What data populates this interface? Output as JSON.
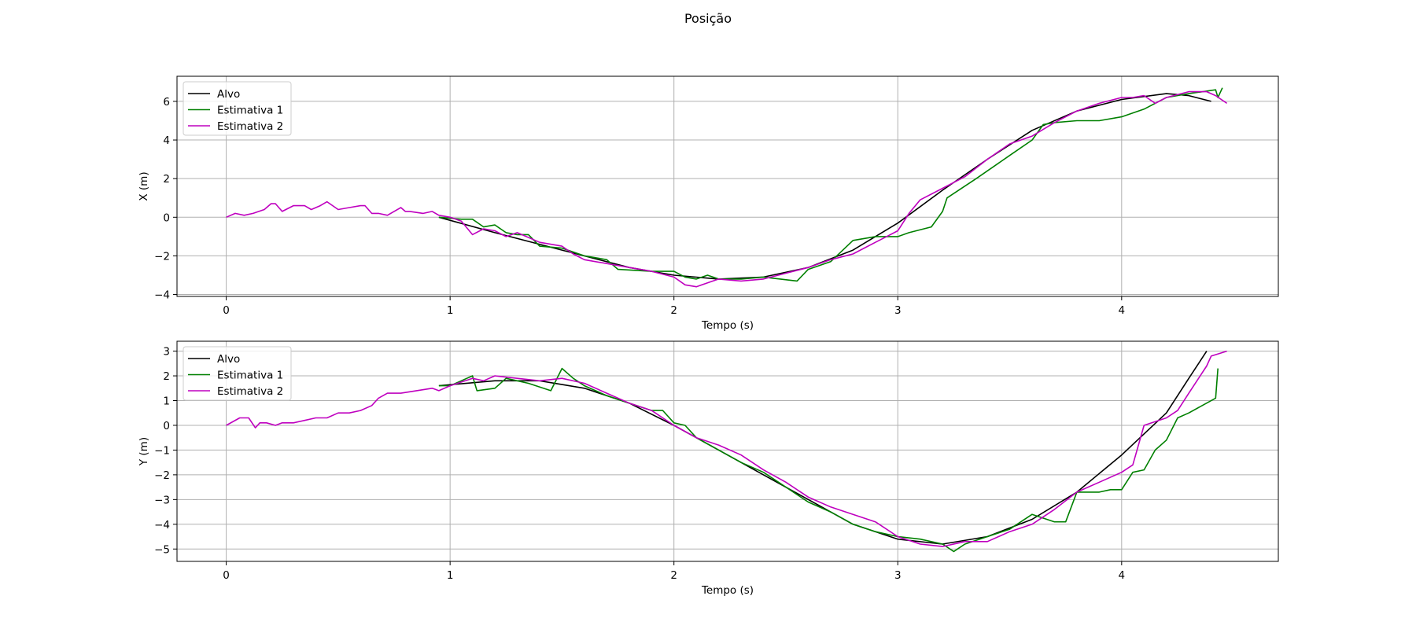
{
  "figure_title": "Posição",
  "series_styles": [
    {
      "name": "Alvo",
      "color": "#000000"
    },
    {
      "name": "Estimativa 1",
      "color": "#008000"
    },
    {
      "name": "Estimativa 2",
      "color": "#bf00bf"
    }
  ],
  "chart_data": [
    {
      "type": "line",
      "xlabel": "Tempo (s)",
      "ylabel": "X (m)",
      "xlim": [
        -0.22,
        4.7
      ],
      "ylim": [
        -4.1,
        7.3
      ],
      "xticks": [
        0,
        1,
        2,
        3,
        4
      ],
      "xtick_labels": [
        "0",
        "1",
        "2",
        "3",
        "4"
      ],
      "yticks": [
        -4,
        -2,
        0,
        2,
        4,
        6
      ],
      "ytick_labels": [
        "−4",
        "−2",
        "0",
        "2",
        "4",
        "6"
      ],
      "grid": true,
      "legend_position": "upper-left",
      "series": [
        {
          "name": "Alvo",
          "x": [
            0.95,
            1.2,
            1.5,
            1.8,
            2.0,
            2.2,
            2.4,
            2.6,
            2.8,
            3.0,
            3.2,
            3.4,
            3.6,
            3.8,
            4.0,
            4.2,
            4.3,
            4.4
          ],
          "y": [
            0.0,
            -0.8,
            -1.7,
            -2.6,
            -3.0,
            -3.2,
            -3.1,
            -2.6,
            -1.7,
            -0.3,
            1.4,
            3.0,
            4.5,
            5.5,
            6.1,
            6.4,
            6.3,
            6.0
          ]
        },
        {
          "name": "Estimativa 1",
          "x": [
            0.95,
            1.05,
            1.1,
            1.15,
            1.2,
            1.25,
            1.3,
            1.35,
            1.4,
            1.5,
            1.6,
            1.7,
            1.75,
            1.9,
            2.0,
            2.05,
            2.1,
            2.15,
            2.2,
            2.3,
            2.4,
            2.55,
            2.6,
            2.7,
            2.8,
            2.9,
            3.0,
            3.05,
            3.15,
            3.2,
            3.22,
            3.35,
            3.5,
            3.6,
            3.65,
            3.7,
            3.8,
            3.9,
            4.0,
            4.1,
            4.2,
            4.3,
            4.42,
            4.43,
            4.45
          ],
          "y": [
            0.0,
            -0.1,
            -0.1,
            -0.5,
            -0.4,
            -0.8,
            -0.9,
            -0.9,
            -1.5,
            -1.6,
            -2.0,
            -2.2,
            -2.7,
            -2.8,
            -2.8,
            -3.1,
            -3.2,
            -3.0,
            -3.2,
            -3.2,
            -3.1,
            -3.3,
            -2.7,
            -2.3,
            -1.2,
            -1.0,
            -1.0,
            -0.8,
            -0.5,
            0.3,
            1.0,
            2.0,
            3.2,
            4.0,
            4.8,
            4.9,
            5.0,
            5.0,
            5.2,
            5.6,
            6.2,
            6.4,
            6.6,
            6.2,
            6.7
          ]
        },
        {
          "name": "Estimativa 2",
          "x": [
            0.0,
            0.04,
            0.08,
            0.12,
            0.17,
            0.2,
            0.22,
            0.25,
            0.3,
            0.35,
            0.38,
            0.42,
            0.45,
            0.5,
            0.55,
            0.6,
            0.62,
            0.65,
            0.68,
            0.72,
            0.78,
            0.8,
            0.82,
            0.88,
            0.92,
            0.95,
            1.0,
            1.05,
            1.1,
            1.15,
            1.2,
            1.25,
            1.3,
            1.4,
            1.5,
            1.55,
            1.6,
            1.7,
            1.8,
            1.9,
            2.0,
            2.05,
            2.1,
            2.15,
            2.2,
            2.3,
            2.4,
            2.5,
            2.6,
            2.7,
            2.8,
            2.9,
            2.95,
            3.0,
            3.05,
            3.1,
            3.2,
            3.3,
            3.4,
            3.5,
            3.6,
            3.7,
            3.8,
            3.9,
            4.0,
            4.05,
            4.1,
            4.15,
            4.2,
            4.3,
            4.38,
            4.42,
            4.47
          ],
          "y": [
            0.0,
            0.2,
            0.1,
            0.2,
            0.4,
            0.7,
            0.7,
            0.3,
            0.6,
            0.6,
            0.4,
            0.6,
            0.8,
            0.4,
            0.5,
            0.6,
            0.6,
            0.2,
            0.2,
            0.1,
            0.5,
            0.3,
            0.3,
            0.2,
            0.3,
            0.1,
            0.0,
            -0.2,
            -0.9,
            -0.6,
            -0.7,
            -1.0,
            -0.8,
            -1.3,
            -1.5,
            -1.9,
            -2.2,
            -2.4,
            -2.6,
            -2.8,
            -3.1,
            -3.5,
            -3.6,
            -3.4,
            -3.2,
            -3.3,
            -3.2,
            -2.9,
            -2.6,
            -2.2,
            -1.9,
            -1.3,
            -1.0,
            -0.7,
            0.2,
            0.9,
            1.5,
            2.1,
            3.0,
            3.8,
            4.2,
            4.9,
            5.5,
            5.9,
            6.2,
            6.2,
            6.3,
            5.9,
            6.2,
            6.5,
            6.5,
            6.3,
            5.9
          ]
        }
      ]
    },
    {
      "type": "line",
      "xlabel": "Tempo (s)",
      "ylabel": "Y (m)",
      "xlim": [
        -0.22,
        4.7
      ],
      "ylim": [
        -5.5,
        3.4
      ],
      "xticks": [
        0,
        1,
        2,
        3,
        4
      ],
      "xtick_labels": [
        "0",
        "1",
        "2",
        "3",
        "4"
      ],
      "yticks": [
        -5,
        -4,
        -3,
        -2,
        -1,
        0,
        1,
        2,
        3
      ],
      "ytick_labels": [
        "−5",
        "−4",
        "−3",
        "−2",
        "−1",
        "0",
        "1",
        "2",
        "3"
      ],
      "grid": true,
      "legend_position": "upper-left",
      "series": [
        {
          "name": "Alvo",
          "x": [
            0.95,
            1.2,
            1.4,
            1.6,
            1.8,
            2.0,
            2.2,
            2.4,
            2.6,
            2.8,
            3.0,
            3.2,
            3.4,
            3.6,
            3.8,
            4.0,
            4.2,
            4.3,
            4.38
          ],
          "y": [
            1.6,
            1.8,
            1.8,
            1.5,
            0.9,
            0.0,
            -1.0,
            -2.0,
            -3.0,
            -4.0,
            -4.6,
            -4.8,
            -4.5,
            -3.8,
            -2.7,
            -1.2,
            0.5,
            1.9,
            3.0
          ]
        },
        {
          "name": "Estimativa 1",
          "x": [
            0.95,
            1.0,
            1.05,
            1.1,
            1.12,
            1.2,
            1.25,
            1.3,
            1.35,
            1.45,
            1.5,
            1.55,
            1.6,
            1.7,
            1.8,
            1.9,
            1.95,
            2.0,
            2.05,
            2.1,
            2.2,
            2.3,
            2.4,
            2.5,
            2.6,
            2.7,
            2.8,
            2.9,
            3.0,
            3.1,
            3.2,
            3.25,
            3.3,
            3.4,
            3.5,
            3.6,
            3.7,
            3.75,
            3.8,
            3.9,
            3.95,
            4.0,
            4.05,
            4.1,
            4.15,
            4.2,
            4.25,
            4.3,
            4.42,
            4.43
          ],
          "y": [
            1.6,
            1.6,
            1.8,
            2.0,
            1.4,
            1.5,
            1.9,
            1.8,
            1.7,
            1.4,
            2.3,
            1.9,
            1.6,
            1.2,
            0.9,
            0.6,
            0.6,
            0.1,
            0.0,
            -0.5,
            -1.0,
            -1.5,
            -1.9,
            -2.5,
            -3.1,
            -3.5,
            -4.0,
            -4.3,
            -4.5,
            -4.6,
            -4.8,
            -5.1,
            -4.8,
            -4.5,
            -4.2,
            -3.6,
            -3.9,
            -3.9,
            -2.7,
            -2.7,
            -2.6,
            -2.6,
            -1.9,
            -1.8,
            -1.0,
            -0.6,
            0.3,
            0.5,
            1.1,
            2.3
          ]
        },
        {
          "name": "Estimativa 2",
          "x": [
            0.0,
            0.06,
            0.1,
            0.13,
            0.15,
            0.18,
            0.22,
            0.25,
            0.3,
            0.35,
            0.4,
            0.45,
            0.5,
            0.55,
            0.6,
            0.65,
            0.68,
            0.72,
            0.78,
            0.85,
            0.92,
            0.95,
            1.0,
            1.1,
            1.15,
            1.2,
            1.3,
            1.4,
            1.5,
            1.6,
            1.7,
            1.8,
            1.9,
            2.0,
            2.1,
            2.2,
            2.3,
            2.4,
            2.5,
            2.6,
            2.7,
            2.8,
            2.9,
            3.0,
            3.1,
            3.2,
            3.3,
            3.4,
            3.5,
            3.6,
            3.7,
            3.8,
            3.9,
            4.0,
            4.05,
            4.1,
            4.2,
            4.25,
            4.3,
            4.38,
            4.4,
            4.47
          ],
          "y": [
            0.0,
            0.3,
            0.3,
            -0.1,
            0.1,
            0.1,
            0.0,
            0.1,
            0.1,
            0.2,
            0.3,
            0.3,
            0.5,
            0.5,
            0.6,
            0.8,
            1.1,
            1.3,
            1.3,
            1.4,
            1.5,
            1.4,
            1.6,
            1.9,
            1.8,
            2.0,
            1.9,
            1.8,
            1.9,
            1.7,
            1.3,
            0.9,
            0.6,
            0.0,
            -0.5,
            -0.8,
            -1.2,
            -1.8,
            -2.3,
            -2.9,
            -3.3,
            -3.6,
            -3.9,
            -4.5,
            -4.8,
            -4.9,
            -4.7,
            -4.7,
            -4.3,
            -4.0,
            -3.4,
            -2.7,
            -2.3,
            -1.9,
            -1.6,
            0.0,
            0.3,
            0.6,
            1.3,
            2.4,
            2.8,
            3.0
          ]
        }
      ]
    }
  ]
}
